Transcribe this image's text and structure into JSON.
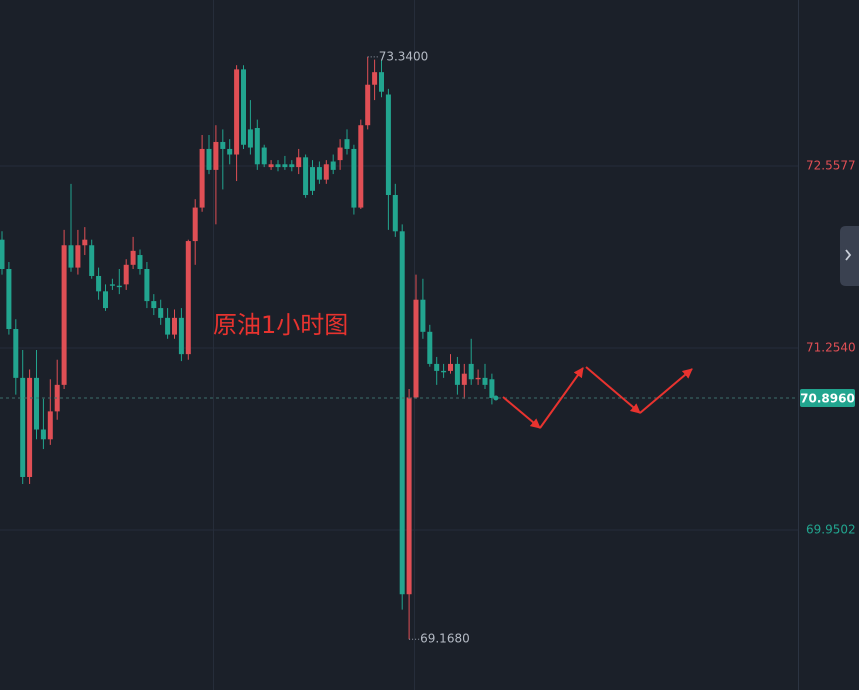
{
  "chart_data": {
    "type": "candlestick",
    "annotation": "原油1小时图",
    "up_color": "#e04f55",
    "down_color": "#22a58f",
    "ylim": [
      68.804,
      73.747
    ],
    "yticks": [
      69.9502,
      {
        "value": 71.254,
        "label": "71.2540"
      },
      72.5577
    ],
    "grid": true,
    "high_label": {
      "value": 73.34,
      "label": "73.3400"
    },
    "low_label": {
      "value": 69.168,
      "label": "69.1680"
    },
    "last_price": {
      "value": 70.896,
      "label": "70.8960"
    },
    "ohlc": [
      [
        72.03,
        72.09,
        71.78,
        71.82
      ],
      [
        71.82,
        71.87,
        71.35,
        71.39
      ],
      [
        71.39,
        71.46,
        70.92,
        71.04
      ],
      [
        71.04,
        71.24,
        70.28,
        70.33
      ],
      [
        70.33,
        71.1,
        70.28,
        71.04
      ],
      [
        71.04,
        71.24,
        70.6,
        70.67
      ],
      [
        70.67,
        70.89,
        70.53,
        70.6
      ],
      [
        70.6,
        71.03,
        70.56,
        70.8
      ],
      [
        70.8,
        71.17,
        70.74,
        70.99
      ],
      [
        70.99,
        72.1,
        70.96,
        71.99
      ],
      [
        71.99,
        72.43,
        71.8,
        71.83
      ],
      [
        71.83,
        72.1,
        71.78,
        71.99
      ],
      [
        71.99,
        72.12,
        71.92,
        72.03
      ],
      [
        71.99,
        72.03,
        71.75,
        71.77
      ],
      [
        71.77,
        71.83,
        71.6,
        71.66
      ],
      [
        71.66,
        71.71,
        71.52,
        71.54
      ],
      [
        71.71,
        71.75,
        71.67,
        71.7
      ],
      [
        71.7,
        71.82,
        71.64,
        71.69
      ],
      [
        71.71,
        71.89,
        71.67,
        71.85
      ],
      [
        71.85,
        72.05,
        71.82,
        71.95
      ],
      [
        71.92,
        71.96,
        71.78,
        71.82
      ],
      [
        71.82,
        71.87,
        71.54,
        71.59
      ],
      [
        71.59,
        71.64,
        71.49,
        71.54
      ],
      [
        71.54,
        71.6,
        71.42,
        71.47
      ],
      [
        71.47,
        71.54,
        71.32,
        71.35
      ],
      [
        71.35,
        71.53,
        71.32,
        71.47
      ],
      [
        71.47,
        71.54,
        71.16,
        71.21
      ],
      [
        71.21,
        72.03,
        71.17,
        72.02
      ],
      [
        72.02,
        72.32,
        71.85,
        72.26
      ],
      [
        72.26,
        72.78,
        72.23,
        72.68
      ],
      [
        72.68,
        72.78,
        72.5,
        72.53
      ],
      [
        72.53,
        72.85,
        72.14,
        72.73
      ],
      [
        72.73,
        72.82,
        72.39,
        72.68
      ],
      [
        72.68,
        72.75,
        72.57,
        72.64
      ],
      [
        72.64,
        73.28,
        72.45,
        73.25
      ],
      [
        73.25,
        73.28,
        72.68,
        72.71
      ],
      [
        72.82,
        73.03,
        72.64,
        72.69
      ],
      [
        72.83,
        72.89,
        72.53,
        72.57
      ],
      [
        72.69,
        72.71,
        72.55,
        72.57
      ],
      [
        72.55,
        72.6,
        72.53,
        72.57
      ],
      [
        72.57,
        72.6,
        72.52,
        72.55
      ],
      [
        72.57,
        72.63,
        72.53,
        72.55
      ],
      [
        72.57,
        72.6,
        72.52,
        72.55
      ],
      [
        72.55,
        72.68,
        72.5,
        72.62
      ],
      [
        72.62,
        72.64,
        72.33,
        72.35
      ],
      [
        72.55,
        72.6,
        72.35,
        72.38
      ],
      [
        72.55,
        72.59,
        72.43,
        72.46
      ],
      [
        72.46,
        72.6,
        72.43,
        72.57
      ],
      [
        72.59,
        72.64,
        72.5,
        72.53
      ],
      [
        72.6,
        72.75,
        72.53,
        72.69
      ],
      [
        72.75,
        72.82,
        72.64,
        72.68
      ],
      [
        72.68,
        72.71,
        72.21,
        72.26
      ],
      [
        72.26,
        72.89,
        72.25,
        72.85
      ],
      [
        72.85,
        73.34,
        72.82,
        73.14
      ],
      [
        73.14,
        73.32,
        73.03,
        73.23
      ],
      [
        73.23,
        73.32,
        73.05,
        73.09
      ],
      [
        73.07,
        73.11,
        72.1,
        72.35
      ],
      [
        72.35,
        72.43,
        72.05,
        72.09
      ],
      [
        72.09,
        72.14,
        69.38,
        69.49
      ],
      [
        69.49,
        70.96,
        69.168,
        70.9
      ],
      [
        70.9,
        71.78,
        70.89,
        71.6
      ],
      [
        71.6,
        71.75,
        71.32,
        71.37
      ],
      [
        71.37,
        71.42,
        71.12,
        71.14
      ],
      [
        71.14,
        71.19,
        70.99,
        71.09
      ],
      [
        71.09,
        71.14,
        71.04,
        71.08
      ],
      [
        71.09,
        71.21,
        71.07,
        71.14
      ],
      [
        71.14,
        71.19,
        70.92,
        70.99
      ],
      [
        70.99,
        71.14,
        70.89,
        71.07
      ],
      [
        71.14,
        71.32,
        70.99,
        71.03
      ],
      [
        71.03,
        71.1,
        70.99,
        71.04
      ],
      [
        71.04,
        71.14,
        70.96,
        70.99
      ],
      [
        71.03,
        71.07,
        70.85,
        70.896
      ]
    ]
  }
}
